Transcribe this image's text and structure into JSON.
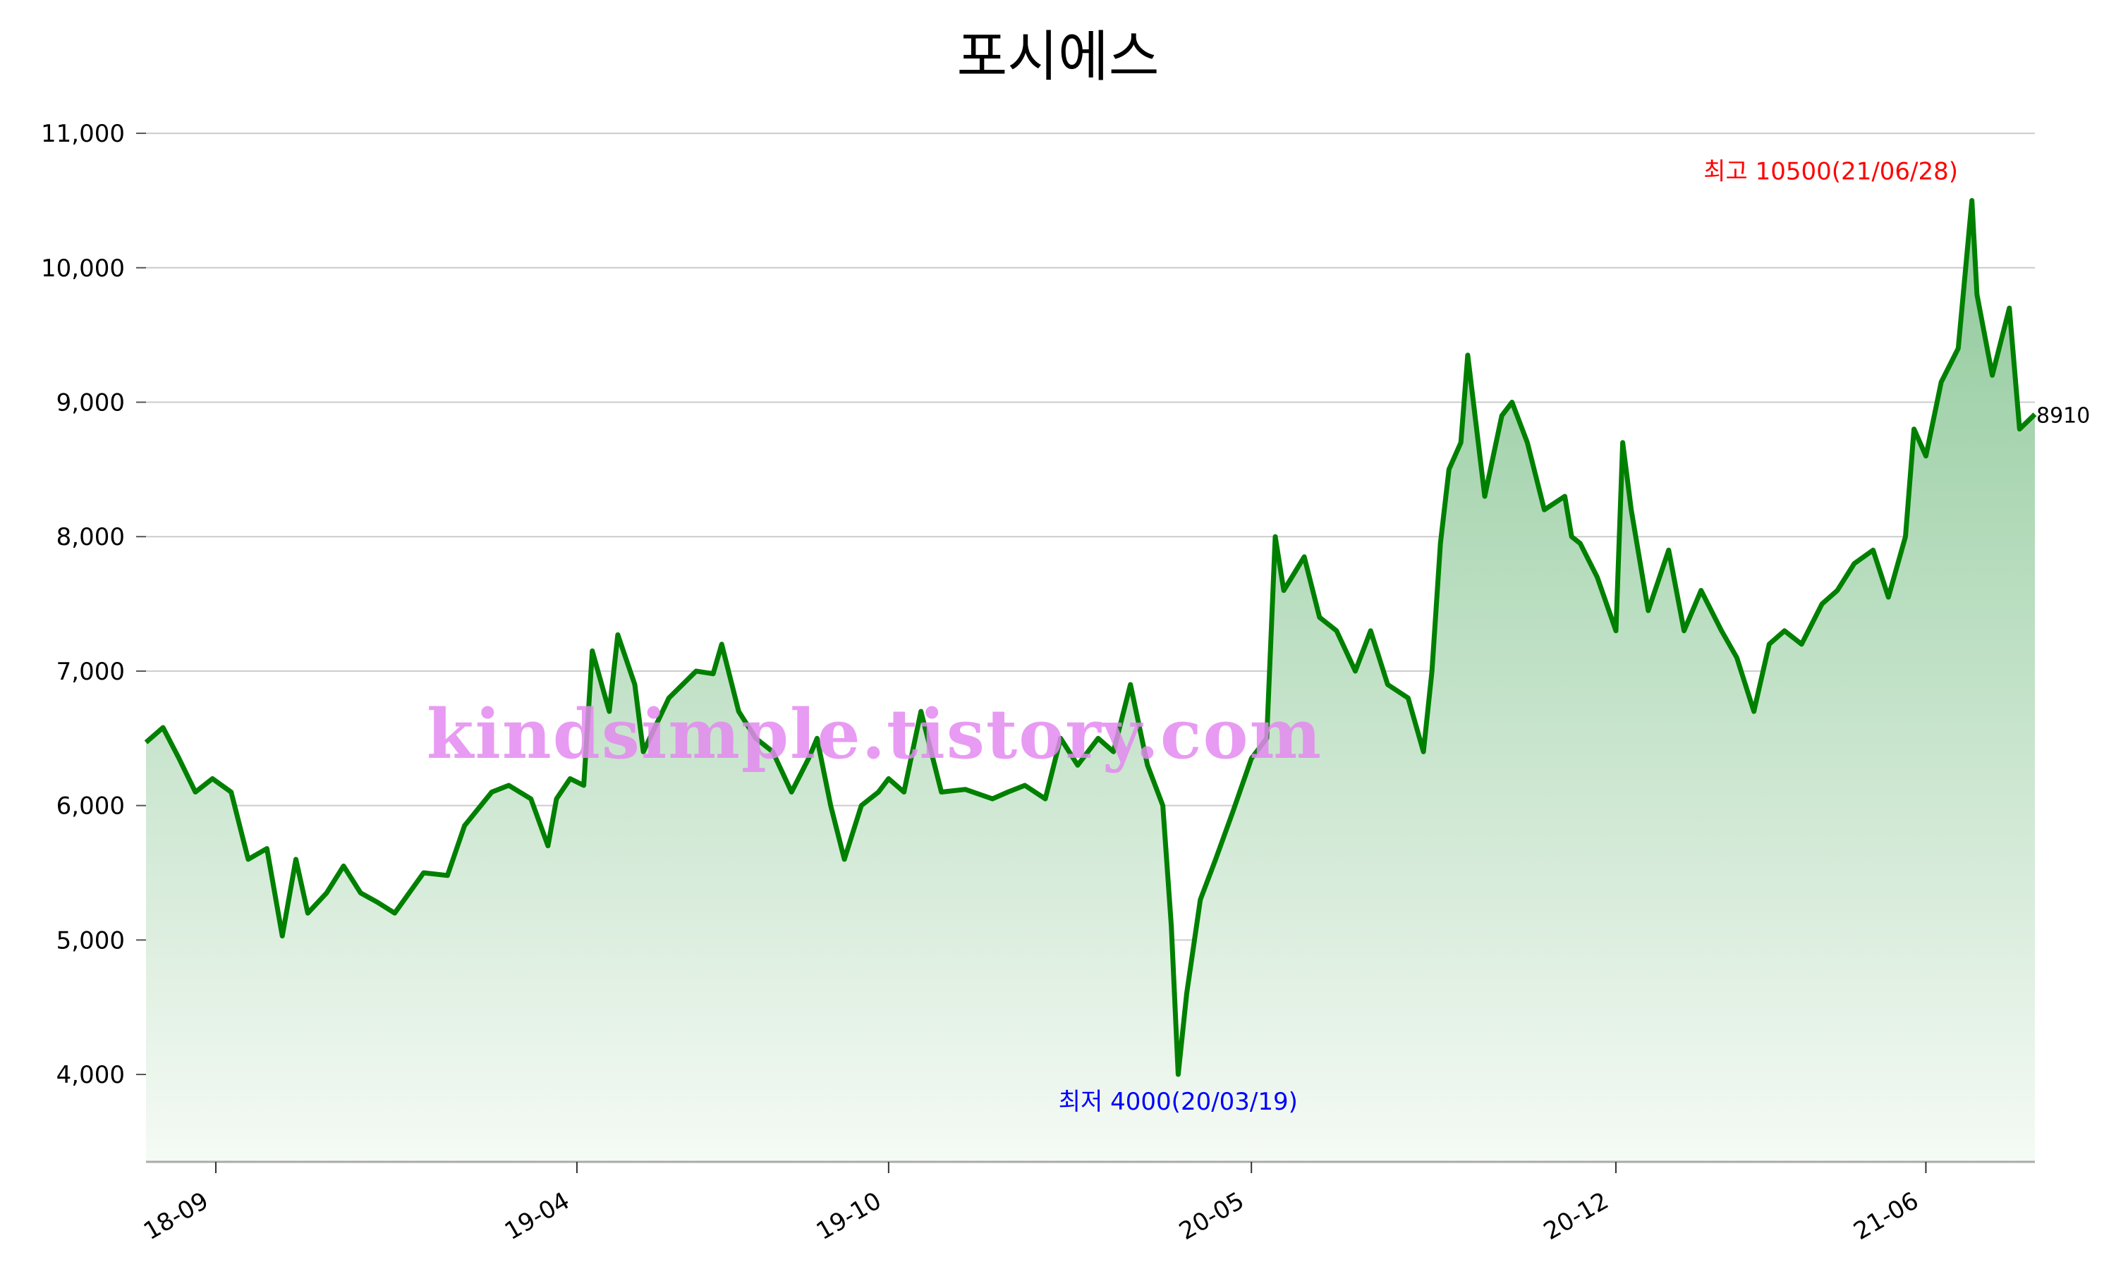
{
  "chart_data": {
    "type": "area",
    "title": "포시에스",
    "xlabel": "",
    "ylabel": "",
    "ylim": [
      3350,
      11100
    ],
    "yticks": [
      4000,
      5000,
      6000,
      7000,
      8000,
      9000,
      10000,
      11000
    ],
    "ytick_labels": [
      "4,000",
      "5,000",
      "6,000",
      "7,000",
      "8,000",
      "9,000",
      "10,000",
      "11,000"
    ],
    "xlim": [
      "2018-07-22",
      "2021-08-04"
    ],
    "xticks": [
      "2018-09-01",
      "2019-04-01",
      "2019-10-01",
      "2020-05-01",
      "2020-12-01",
      "2021-06-01"
    ],
    "xtick_labels": [
      "18-09",
      "19-04",
      "19-10",
      "20-05",
      "20-12",
      "21-06"
    ],
    "grid": true,
    "line_color": "#008000",
    "fill_gradient": [
      "#8fc99a",
      "#f5faf5"
    ],
    "series": [
      {
        "x": [
          "2018-07-22",
          "2018-08-01",
          "2018-08-10",
          "2018-08-20",
          "2018-08-30",
          "2018-09-10",
          "2018-09-20",
          "2018-10-01",
          "2018-10-10",
          "2018-10-18",
          "2018-10-25",
          "2018-11-05",
          "2018-11-15",
          "2018-11-25",
          "2018-12-05",
          "2018-12-15",
          "2019-01-01",
          "2019-01-15",
          "2019-01-25",
          "2019-02-10",
          "2019-02-20",
          "2019-03-05",
          "2019-03-15",
          "2019-03-20",
          "2019-03-28",
          "2019-04-05",
          "2019-04-10",
          "2019-04-20",
          "2019-04-25",
          "2019-05-05",
          "2019-05-10",
          "2019-05-25",
          "2019-06-10",
          "2019-06-20",
          "2019-06-25",
          "2019-07-05",
          "2019-07-15",
          "2019-07-25",
          "2019-08-05",
          "2019-08-15",
          "2019-08-20",
          "2019-08-28",
          "2019-09-05",
          "2019-09-15",
          "2019-09-25",
          "2019-10-01",
          "2019-10-10",
          "2019-10-20",
          "2019-11-01",
          "2019-11-15",
          "2019-12-01",
          "2019-12-10",
          "2019-12-20",
          "2020-01-01",
          "2020-01-10",
          "2020-01-20",
          "2020-02-01",
          "2020-02-10",
          "2020-02-20",
          "2020-03-01",
          "2020-03-10",
          "2020-03-15",
          "2020-03-19",
          "2020-03-24",
          "2020-04-01",
          "2020-04-10",
          "2020-04-20",
          "2020-05-01",
          "2020-05-10",
          "2020-05-15",
          "2020-05-20",
          "2020-06-01",
          "2020-06-10",
          "2020-06-20",
          "2020-07-01",
          "2020-07-10",
          "2020-07-20",
          "2020-08-01",
          "2020-08-10",
          "2020-08-15",
          "2020-08-20",
          "2020-08-25",
          "2020-09-01",
          "2020-09-05",
          "2020-09-15",
          "2020-09-25",
          "2020-10-01",
          "2020-10-10",
          "2020-10-20",
          "2020-11-01",
          "2020-11-05",
          "2020-11-10",
          "2020-11-20",
          "2020-12-01",
          "2020-12-05",
          "2020-12-10",
          "2020-12-20",
          "2021-01-01",
          "2021-01-10",
          "2021-01-20",
          "2021-02-01",
          "2021-02-10",
          "2021-02-20",
          "2021-03-01",
          "2021-03-10",
          "2021-03-20",
          "2021-04-01",
          "2021-04-10",
          "2021-04-20",
          "2021-05-01",
          "2021-05-10",
          "2021-05-20",
          "2021-05-25",
          "2021-06-01",
          "2021-06-10",
          "2021-06-20",
          "2021-06-28",
          "2021-07-01",
          "2021-07-10",
          "2021-07-20",
          "2021-07-26",
          "2021-08-04"
        ],
        "values": [
          6470,
          6580,
          6360,
          6100,
          6200,
          6100,
          5600,
          5680,
          5030,
          5600,
          5200,
          5350,
          5550,
          5350,
          5280,
          5200,
          5500,
          5480,
          5850,
          6100,
          6150,
          6050,
          5700,
          6050,
          6200,
          6150,
          7150,
          6700,
          7270,
          6900,
          6400,
          6800,
          7000,
          6980,
          7200,
          6700,
          6500,
          6400,
          6100,
          6350,
          6500,
          6000,
          5600,
          6000,
          6100,
          6200,
          6100,
          6700,
          6100,
          6120,
          6050,
          6100,
          6150,
          6050,
          6500,
          6300,
          6500,
          6400,
          6900,
          6300,
          6000,
          5100,
          4000,
          4600,
          5300,
          5600,
          5950,
          6350,
          6500,
          8000,
          7600,
          7850,
          7400,
          7300,
          7000,
          7300,
          6900,
          6800,
          6400,
          7000,
          7950,
          8500,
          8700,
          9350,
          8300,
          8900,
          9000,
          8700,
          8200,
          8300,
          8000,
          7950,
          7700,
          7300,
          8700,
          8200,
          7450,
          7900,
          7300,
          7600,
          7300,
          7100,
          6700,
          7200,
          7300,
          7200,
          7500,
          7600,
          7800,
          7900,
          7550,
          8000,
          8800,
          8600,
          9150,
          9400,
          10500,
          9800,
          9200,
          9700,
          8800,
          8910
        ]
      }
    ],
    "annotations": [
      {
        "text": "최고 10500(21/06/28)",
        "x": "2021-06-28",
        "value": 10500,
        "color": "#ff0000"
      },
      {
        "text": "최저 4000(20/03/19)",
        "x": "2020-03-19",
        "value": 4000,
        "color": "#0000ff"
      },
      {
        "text": "8910",
        "x": "2021-08-04",
        "value": 8910,
        "color": "#000000"
      }
    ],
    "watermark": "kindsimple.tistory.com"
  }
}
